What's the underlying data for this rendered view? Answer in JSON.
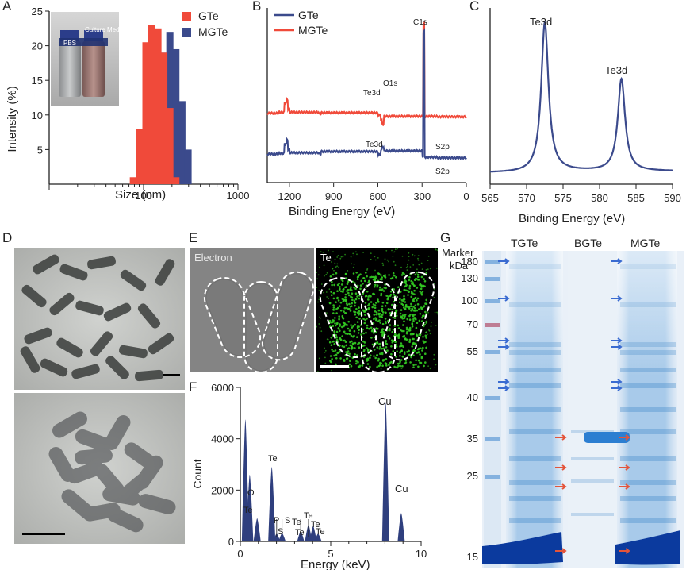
{
  "panel_letters": [
    "A",
    "B",
    "C",
    "D",
    "E",
    "F",
    "G"
  ],
  "colors": {
    "gte": "#f04a3a",
    "mgte": "#3b4a8c",
    "navy": "#3b4a8c",
    "red": "#f04a3a",
    "eds_fill": "#2f3f7e",
    "te_green": "#33cc22",
    "gel_blue": "#3f86c8",
    "arrow_blue": "#3a6bd1",
    "arrow_red": "#e4543a"
  },
  "chart_data": [
    {
      "panel": "A",
      "type": "bar",
      "title": "",
      "xlabel": "Size (nm)",
      "ylabel": "Intensity (%)",
      "xscale": "log",
      "xlim": [
        10,
        1000
      ],
      "ylim": [
        0,
        25
      ],
      "xticks": [
        "100",
        "1000"
      ],
      "yticks": [
        "5",
        "10",
        "15",
        "20",
        "25"
      ],
      "legend": [
        "GTe",
        "MGTe"
      ],
      "inset_labels": [
        "PBS",
        "Culture Medium"
      ],
      "series": [
        {
          "name": "GTe",
          "x": [
            78,
            91,
            106,
            122,
            142,
            164,
            190,
            220
          ],
          "values": [
            1,
            8,
            20.5,
            23,
            22.5,
            19,
            11,
            1
          ]
        },
        {
          "name": "MGTe",
          "x": [
            142,
            164,
            190,
            220,
            255,
            296
          ],
          "values": [
            1,
            19,
            22,
            19.5,
            12,
            5
          ]
        }
      ]
    },
    {
      "panel": "B",
      "type": "line",
      "title": "",
      "xlabel": "Binding Energy (eV)",
      "ylabel": "",
      "xlim": [
        1350,
        0
      ],
      "xticks": [
        "1200",
        "900",
        "600",
        "300",
        "0"
      ],
      "legend": [
        "GTe",
        "MGTe"
      ],
      "annotations": [
        "C1s",
        "O1s",
        "Te3d",
        "Te3d",
        "S2p",
        "S2p"
      ],
      "series": [
        {
          "name": "MGTe",
          "x": [
            1350,
            1270,
            1220,
            1200,
            1000,
            985,
            600,
            585,
            572,
            300,
            289,
            285,
            200,
            0
          ],
          "values": [
            0.58,
            0.62,
            0.75,
            0.62,
            0.55,
            0.6,
            0.5,
            0.6,
            0.45,
            0.47,
            1.0,
            0.45,
            0.43,
            0.4
          ]
        },
        {
          "name": "GTe",
          "x": [
            1350,
            1270,
            1220,
            1200,
            1000,
            985,
            600,
            585,
            572,
            300,
            289,
            285,
            200,
            0
          ],
          "values": [
            0.2,
            0.22,
            0.35,
            0.24,
            0.2,
            0.28,
            0.18,
            0.2,
            0.3,
            0.12,
            0.95,
            0.1,
            0.08,
            0.05
          ]
        }
      ]
    },
    {
      "panel": "C",
      "type": "line",
      "title": "",
      "xlabel": "Binding Energy (eV)",
      "ylabel": "",
      "xlim": [
        565,
        590
      ],
      "xticks": [
        "565",
        "570",
        "575",
        "580",
        "585",
        "590"
      ],
      "annotations": [
        "Te3d",
        "Te3d"
      ],
      "series": [
        {
          "name": "Te3d",
          "peaks": [
            {
              "center": 572.5,
              "height": 1.0
            },
            {
              "center": 583,
              "height": 0.62
            }
          ]
        }
      ]
    },
    {
      "panel": "F",
      "type": "bar",
      "title": "",
      "xlabel": "Energy (keV)",
      "ylabel": "Count",
      "xlim": [
        0,
        10
      ],
      "ylim": [
        0,
        6000
      ],
      "xticks": [
        "0",
        "5",
        "10"
      ],
      "yticks": [
        "0",
        "2000",
        "4000",
        "6000"
      ],
      "peak_labels": [
        "O",
        "Te",
        "Te",
        "P",
        "S",
        "S",
        "Te",
        "Te",
        "Te",
        "Te",
        "Te",
        "Cu",
        "Cu"
      ],
      "peaks": [
        {
          "x": 0.28,
          "y": 4750
        },
        {
          "x": 0.52,
          "y": 2600
        },
        {
          "x": 0.93,
          "y": 900
        },
        {
          "x": 1.74,
          "y": 2900
        },
        {
          "x": 2.01,
          "y": 300
        },
        {
          "x": 2.31,
          "y": 320
        },
        {
          "x": 3.34,
          "y": 400
        },
        {
          "x": 3.77,
          "y": 650
        },
        {
          "x": 4.03,
          "y": 600
        },
        {
          "x": 4.3,
          "y": 300
        },
        {
          "x": 8.04,
          "y": 5400
        },
        {
          "x": 8.9,
          "y": 1100
        }
      ]
    }
  ],
  "panel_e": {
    "left_label": "Electron",
    "right_label": "Te"
  },
  "panel_g": {
    "marker_title": "Marker",
    "unit": "kDa",
    "lane_labels": [
      "TGTe",
      "BGTe",
      "MGTe"
    ],
    "marker_kda": [
      "180",
      "130",
      "100",
      "70",
      "55",
      "40",
      "35",
      "25",
      "15"
    ]
  }
}
